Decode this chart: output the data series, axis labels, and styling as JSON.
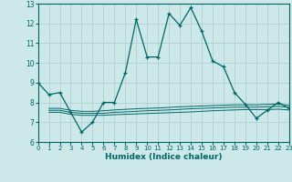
{
  "xlabel": "Humidex (Indice chaleur)",
  "x": [
    0,
    1,
    2,
    3,
    4,
    5,
    6,
    7,
    8,
    9,
    10,
    11,
    12,
    13,
    14,
    15,
    16,
    17,
    18,
    19,
    20,
    21,
    22,
    23
  ],
  "line1": [
    9.0,
    8.4,
    8.5,
    7.5,
    6.5,
    7.0,
    8.0,
    8.0,
    9.5,
    12.2,
    10.3,
    10.3,
    12.5,
    11.9,
    12.8,
    11.6,
    10.1,
    9.8,
    8.5,
    7.9,
    7.2,
    7.6,
    8.0,
    7.7
  ],
  "flat_x": [
    1,
    2,
    3,
    4,
    5,
    6,
    7,
    8,
    9,
    10,
    11,
    12,
    13,
    14,
    15,
    16,
    17,
    18,
    19,
    20,
    21,
    22,
    23
  ],
  "flat_bottom": [
    7.5,
    7.5,
    7.4,
    7.35,
    7.35,
    7.35,
    7.38,
    7.4,
    7.42,
    7.44,
    7.46,
    7.48,
    7.5,
    7.52,
    7.55,
    7.58,
    7.6,
    7.62,
    7.64,
    7.64,
    7.64,
    7.66,
    7.62
  ],
  "flat_mid": [
    7.6,
    7.6,
    7.5,
    7.45,
    7.45,
    7.45,
    7.5,
    7.52,
    7.55,
    7.58,
    7.6,
    7.62,
    7.65,
    7.68,
    7.7,
    7.72,
    7.74,
    7.76,
    7.76,
    7.76,
    7.78,
    7.8,
    7.75
  ],
  "flat_top": [
    7.7,
    7.7,
    7.6,
    7.55,
    7.55,
    7.58,
    7.62,
    7.65,
    7.68,
    7.7,
    7.72,
    7.75,
    7.78,
    7.8,
    7.82,
    7.84,
    7.86,
    7.88,
    7.88,
    7.88,
    7.9,
    7.92,
    7.85
  ],
  "bg_color": "#cce8e8",
  "grid_color": "#aacccc",
  "line_color": "#006666",
  "ylim": [
    6,
    13
  ],
  "xlim": [
    0,
    23
  ],
  "yticks": [
    6,
    7,
    8,
    9,
    10,
    11,
    12,
    13
  ],
  "xticks": [
    0,
    1,
    2,
    3,
    4,
    5,
    6,
    7,
    8,
    9,
    10,
    11,
    12,
    13,
    14,
    15,
    16,
    17,
    18,
    19,
    20,
    21,
    22,
    23
  ]
}
